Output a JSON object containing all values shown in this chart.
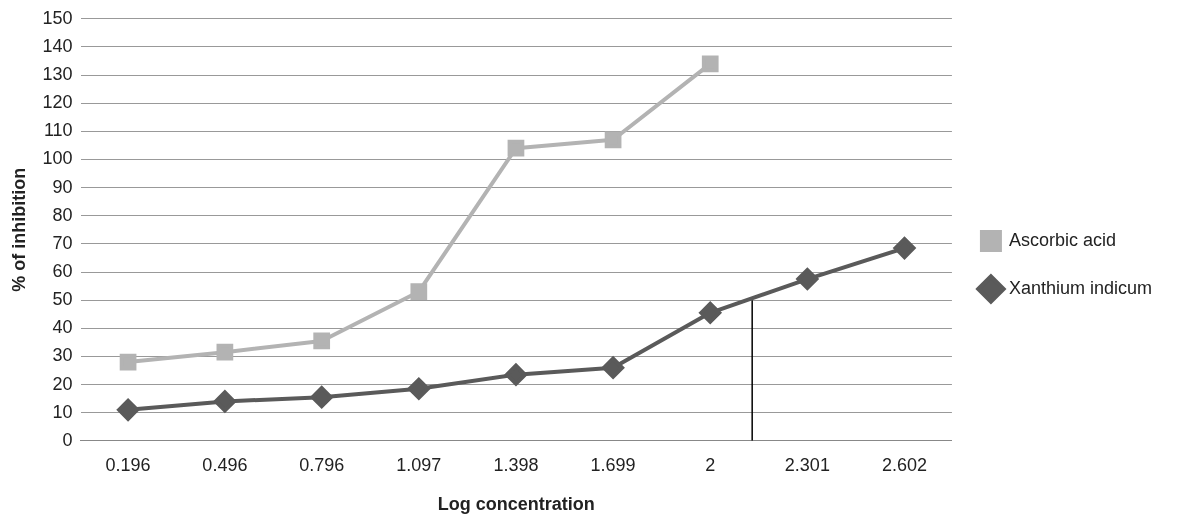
{
  "chart_data": {
    "type": "line",
    "xlabel": "Log concentration",
    "ylabel": "% of inhibition",
    "xlim": [
      0.049,
      2.749
    ],
    "xticks": [
      0.196,
      0.496,
      0.796,
      1.097,
      1.398,
      1.699,
      2,
      2.301,
      2.602
    ],
    "ylim": [
      0,
      150
    ],
    "yticks": [
      0,
      10,
      20,
      30,
      40,
      50,
      60,
      70,
      80,
      90,
      100,
      110,
      120,
      130,
      140,
      150
    ],
    "grid": "y",
    "legend": "right",
    "line_style": "solid",
    "series": [
      {
        "name": "Ascorbic acid",
        "color": "#b3b3b3",
        "marker": "square",
        "x": [
          0.196,
          0.496,
          0.796,
          1.097,
          1.398,
          1.699,
          2
        ],
        "values": [
          28,
          31.5,
          35.5,
          53,
          104,
          107,
          134
        ]
      },
      {
        "name": "Xanthium indicum",
        "color": "#5a5a5a",
        "marker": "diamond",
        "x": [
          0.196,
          0.496,
          0.796,
          1.097,
          1.398,
          1.699,
          2,
          2.301,
          2.602
        ],
        "values": [
          11,
          14,
          15.5,
          18.5,
          23.5,
          26,
          45.5,
          57.5,
          68.5
        ]
      },
      {
        "color": "#000000",
        "marker": "none",
        "x": [
          2.13,
          2.13
        ],
        "values": [
          0,
          50
        ]
      }
    ]
  }
}
